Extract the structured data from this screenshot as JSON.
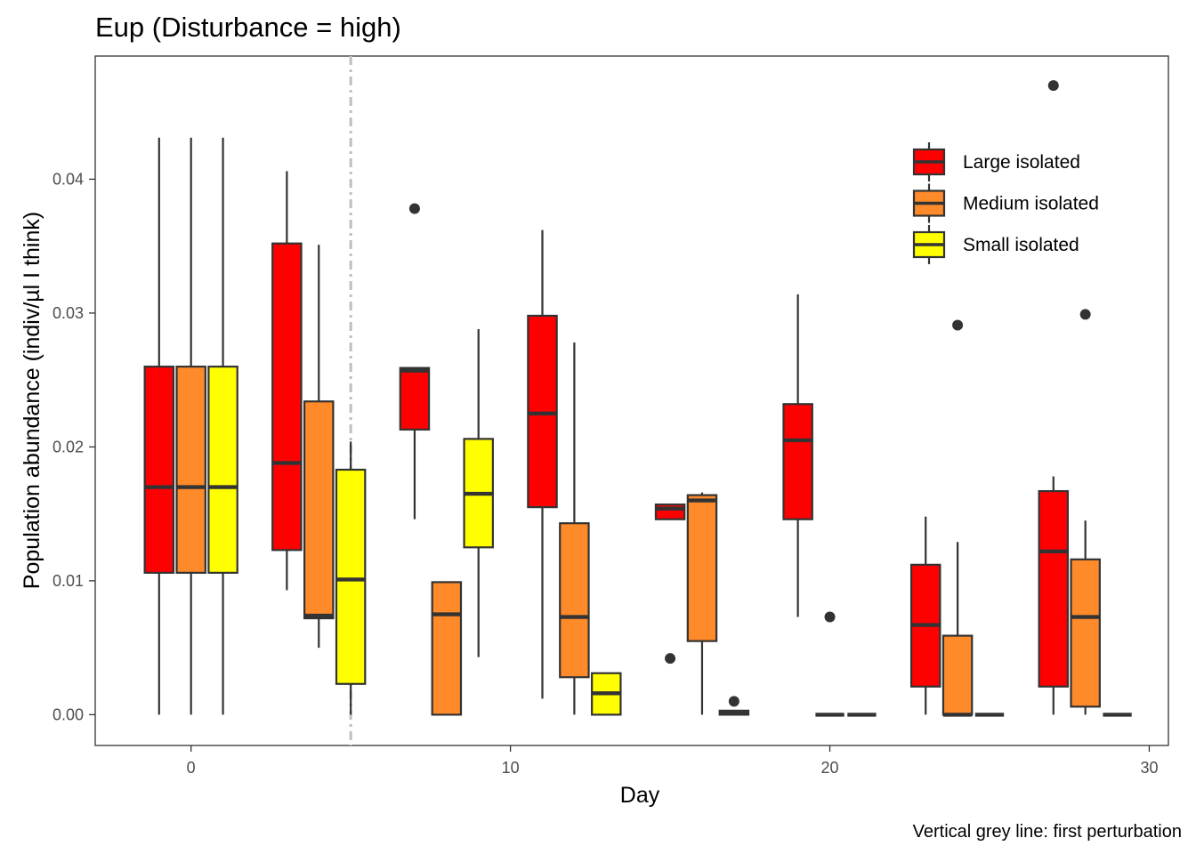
{
  "chart_data": {
    "type": "boxplot",
    "title": "Eup (Disturbance = high)",
    "xlabel": "Day",
    "ylabel": "Population abundance (indiv/µl I think)",
    "caption": "Vertical grey line: first perturbation",
    "xlim": [
      -3,
      30.6
    ],
    "ylim": [
      -0.0023,
      0.0492
    ],
    "x_ticks": [
      0,
      10,
      20,
      30
    ],
    "x_tick_labels": [
      "0",
      "10",
      "20",
      "30"
    ],
    "y_ticks": [
      0.0,
      0.01,
      0.02,
      0.03,
      0.04
    ],
    "y_tick_labels": [
      "0.00",
      "0.01",
      "0.02",
      "0.03",
      "0.04"
    ],
    "grid": false,
    "legend_position": "top-right",
    "reference_line": {
      "x": 5,
      "style": "dash-dot",
      "color": "#bebebe"
    },
    "series": [
      {
        "name": "Large isolated",
        "color": "#ff0000",
        "boxes": [
          {
            "day": 0,
            "whisker_low": 0.0,
            "q1": 0.0106,
            "median": 0.017,
            "q3": 0.026,
            "whisker_high": 0.0431,
            "outliers": []
          },
          {
            "day": 4,
            "whisker_low": 0.0093,
            "q1": 0.0123,
            "median": 0.0188,
            "q3": 0.0352,
            "whisker_high": 0.0406,
            "outliers": []
          },
          {
            "day": 8,
            "whisker_low": 0.0146,
            "q1": 0.0213,
            "median": 0.0257,
            "q3": 0.0259,
            "whisker_high": 0.0259,
            "outliers": [
              0.0378
            ]
          },
          {
            "day": 12,
            "whisker_low": 0.0012,
            "q1": 0.0155,
            "median": 0.0225,
            "q3": 0.0298,
            "whisker_high": 0.0362,
            "outliers": []
          },
          {
            "day": 16,
            "whisker_low": 0.0146,
            "q1": 0.0146,
            "median": 0.0154,
            "q3": 0.0157,
            "whisker_high": 0.0157,
            "outliers": [
              0.0042
            ]
          },
          {
            "day": 20,
            "whisker_low": 0.0073,
            "q1": 0.0146,
            "median": 0.0205,
            "q3": 0.0232,
            "whisker_high": 0.0314,
            "outliers": []
          },
          {
            "day": 24,
            "whisker_low": 0.0,
            "q1": 0.0021,
            "median": 0.0067,
            "q3": 0.0112,
            "whisker_high": 0.0148,
            "outliers": []
          },
          {
            "day": 28,
            "whisker_low": 0.0,
            "q1": 0.0021,
            "median": 0.0122,
            "q3": 0.0167,
            "whisker_high": 0.0178,
            "outliers": [
              0.047
            ]
          }
        ]
      },
      {
        "name": "Medium isolated",
        "color": "#ff8a2a",
        "boxes": [
          {
            "day": 0,
            "whisker_low": 0.0,
            "q1": 0.0106,
            "median": 0.017,
            "q3": 0.026,
            "whisker_high": 0.0431,
            "outliers": []
          },
          {
            "day": 4,
            "whisker_low": 0.005,
            "q1": 0.0072,
            "median": 0.0074,
            "q3": 0.0234,
            "whisker_high": 0.0351,
            "outliers": []
          },
          {
            "day": 8,
            "whisker_low": 0.0,
            "q1": 0.0,
            "median": 0.0075,
            "q3": 0.0099,
            "whisker_high": 0.0099,
            "outliers": []
          },
          {
            "day": 12,
            "whisker_low": 0.0,
            "q1": 0.0028,
            "median": 0.0073,
            "q3": 0.0143,
            "whisker_high": 0.0278,
            "outliers": []
          },
          {
            "day": 16,
            "whisker_low": 0.0,
            "q1": 0.0055,
            "median": 0.016,
            "q3": 0.0164,
            "whisker_high": 0.0166,
            "outliers": []
          },
          {
            "day": 20,
            "whisker_low": 0.0,
            "q1": 0.0,
            "median": 0.0,
            "q3": 0.0,
            "whisker_high": 0.0,
            "outliers": [
              0.0073
            ]
          },
          {
            "day": 24,
            "whisker_low": 0.0,
            "q1": 0.0,
            "median": 0.0,
            "q3": 0.0059,
            "whisker_high": 0.0129,
            "outliers": [
              0.0291
            ]
          },
          {
            "day": 28,
            "whisker_low": 0.0,
            "q1": 0.0006,
            "median": 0.0073,
            "q3": 0.0116,
            "whisker_high": 0.0145,
            "outliers": [
              0.0299
            ]
          }
        ]
      },
      {
        "name": "Small isolated",
        "color": "#ffff00",
        "boxes": [
          {
            "day": 0,
            "whisker_low": 0.0,
            "q1": 0.0106,
            "median": 0.017,
            "q3": 0.026,
            "whisker_high": 0.0431,
            "outliers": []
          },
          {
            "day": 4,
            "whisker_low": 0.0,
            "q1": 0.0023,
            "median": 0.0101,
            "q3": 0.0183,
            "whisker_high": 0.0204,
            "outliers": []
          },
          {
            "day": 8,
            "whisker_low": 0.0043,
            "q1": 0.0125,
            "median": 0.0165,
            "q3": 0.0206,
            "whisker_high": 0.0288,
            "outliers": []
          },
          {
            "day": 12,
            "whisker_low": 0.0,
            "q1": 0.0,
            "median": 0.0016,
            "q3": 0.0031,
            "whisker_high": 0.0031,
            "outliers": []
          },
          {
            "day": 16,
            "whisker_low": 0.0,
            "q1": 0.0,
            "median": 0.0001,
            "q3": 0.0003,
            "whisker_high": 0.0003,
            "outliers": [
              0.001
            ]
          },
          {
            "day": 20,
            "whisker_low": 0.0,
            "q1": 0.0,
            "median": 0.0,
            "q3": 0.0,
            "whisker_high": 0.0,
            "outliers": []
          },
          {
            "day": 24,
            "whisker_low": 0.0,
            "q1": 0.0,
            "median": 0.0,
            "q3": 0.0,
            "whisker_high": 0.0,
            "outliers": []
          },
          {
            "day": 28,
            "whisker_low": 0.0,
            "q1": 0.0,
            "median": 0.0,
            "q3": 0.0,
            "whisker_high": 0.0,
            "outliers": []
          }
        ]
      }
    ]
  }
}
